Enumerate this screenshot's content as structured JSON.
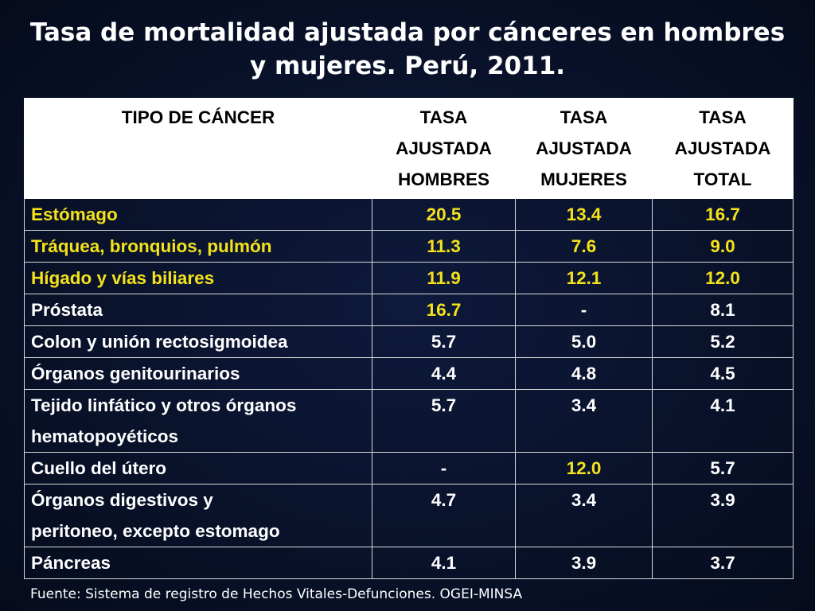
{
  "slide": {
    "title_line1": "Tasa de mortalidad ajustada por cánceres en hombres",
    "title_line2": "y mujeres. Perú, 2011.",
    "source": "Fuente: Sistema de registro de Hechos Vitales-Defunciones. OGEI-MINSA"
  },
  "colors": {
    "background": "#0a1430",
    "highlight": "#f4e21b",
    "text": "#ffffff",
    "header_bg": "#ffffff"
  },
  "table": {
    "headers": [
      [
        "TIPO DE CÁNCER"
      ],
      [
        "TASA",
        "AJUSTADA",
        "HOMBRES"
      ],
      [
        "TASA",
        "AJUSTADA",
        "MUJERES"
      ],
      [
        "TASA",
        "AJUSTADA",
        "TOTAL"
      ]
    ],
    "rows": [
      {
        "name": [
          "Estómago"
        ],
        "hombres": "20.5",
        "mujeres": "13.4",
        "total": "16.7",
        "hl": [
          true,
          true,
          true,
          true
        ]
      },
      {
        "name": [
          "Tráquea, bronquios, pulmón"
        ],
        "hombres": "11.3",
        "mujeres": "7.6",
        "total": "9.0",
        "hl": [
          true,
          true,
          true,
          true
        ]
      },
      {
        "name": [
          "Hígado y vías biliares"
        ],
        "hombres": "11.9",
        "mujeres": "12.1",
        "total": "12.0",
        "hl": [
          true,
          true,
          true,
          true
        ]
      },
      {
        "name": [
          "Próstata"
        ],
        "hombres": "16.7",
        "mujeres": "-",
        "total": "8.1",
        "hl": [
          false,
          true,
          false,
          false
        ]
      },
      {
        "name": [
          "Colon y unión rectosigmoidea"
        ],
        "hombres": "5.7",
        "mujeres": "5.0",
        "total": "5.2",
        "hl": [
          false,
          false,
          false,
          false
        ]
      },
      {
        "name": [
          "Órganos genitourinarios"
        ],
        "hombres": "4.4",
        "mujeres": "4.8",
        "total": "4.5",
        "hl": [
          false,
          false,
          false,
          false
        ]
      },
      {
        "name": [
          "Tejido linfático y otros órganos",
          "hematopoyéticos"
        ],
        "hombres": "5.7",
        "mujeres": "3.4",
        "total": "4.1",
        "hl": [
          false,
          false,
          false,
          false
        ]
      },
      {
        "name": [
          "Cuello del útero"
        ],
        "hombres": "-",
        "mujeres": "12.0",
        "total": "5.7",
        "hl": [
          false,
          false,
          true,
          false
        ]
      },
      {
        "name": [
          "Órganos digestivos y",
          "peritoneo, excepto estomago"
        ],
        "hombres": "4.7",
        "mujeres": "3.4",
        "total": "3.9",
        "hl": [
          false,
          false,
          false,
          false
        ]
      },
      {
        "name": [
          "Páncreas"
        ],
        "hombres": "4.1",
        "mujeres": "3.9",
        "total": "3.7",
        "hl": [
          false,
          false,
          false,
          false
        ]
      }
    ]
  }
}
